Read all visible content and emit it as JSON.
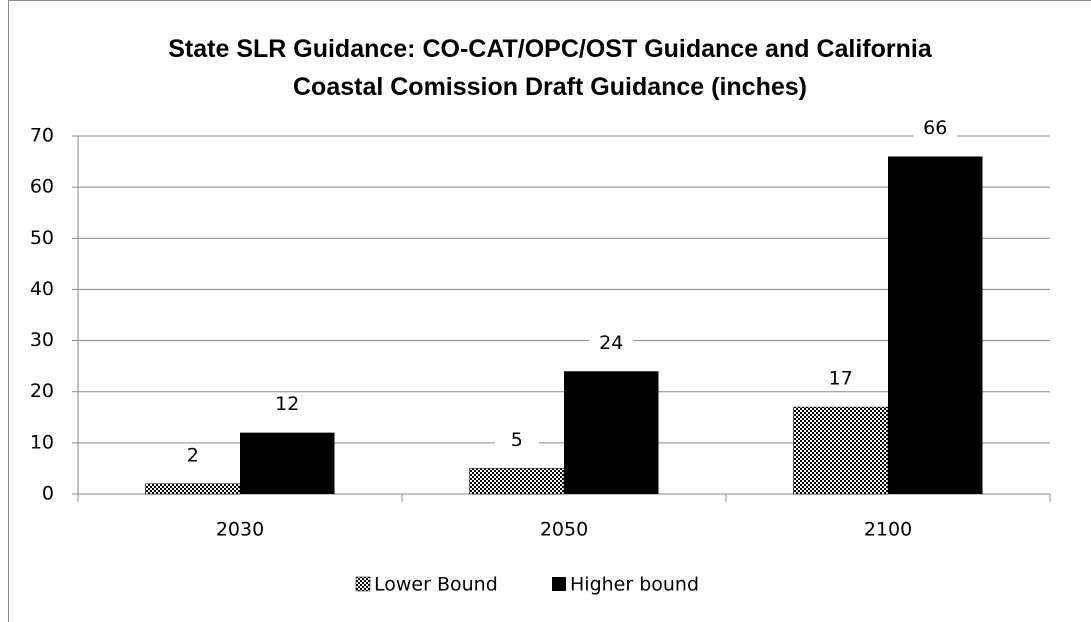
{
  "chart_data": {
    "type": "bar",
    "title": "State SLR Guidance: CO-CAT/OPC/OST Guidance and California Coastal Comission Draft Guidance (inches)",
    "categories": [
      "2030",
      "2050",
      "2100"
    ],
    "series": [
      {
        "name": "Lower Bound",
        "color": "#000000",
        "pattern": "checker",
        "values": [
          2,
          5,
          17
        ]
      },
      {
        "name": "Higher bound",
        "color": "#000000",
        "values": [
          12,
          24,
          66
        ]
      }
    ],
    "ylim": [
      0,
      70
    ],
    "yticks": [
      0,
      10,
      20,
      30,
      40,
      50,
      60,
      70
    ],
    "grid": true,
    "legend": "bottom"
  }
}
